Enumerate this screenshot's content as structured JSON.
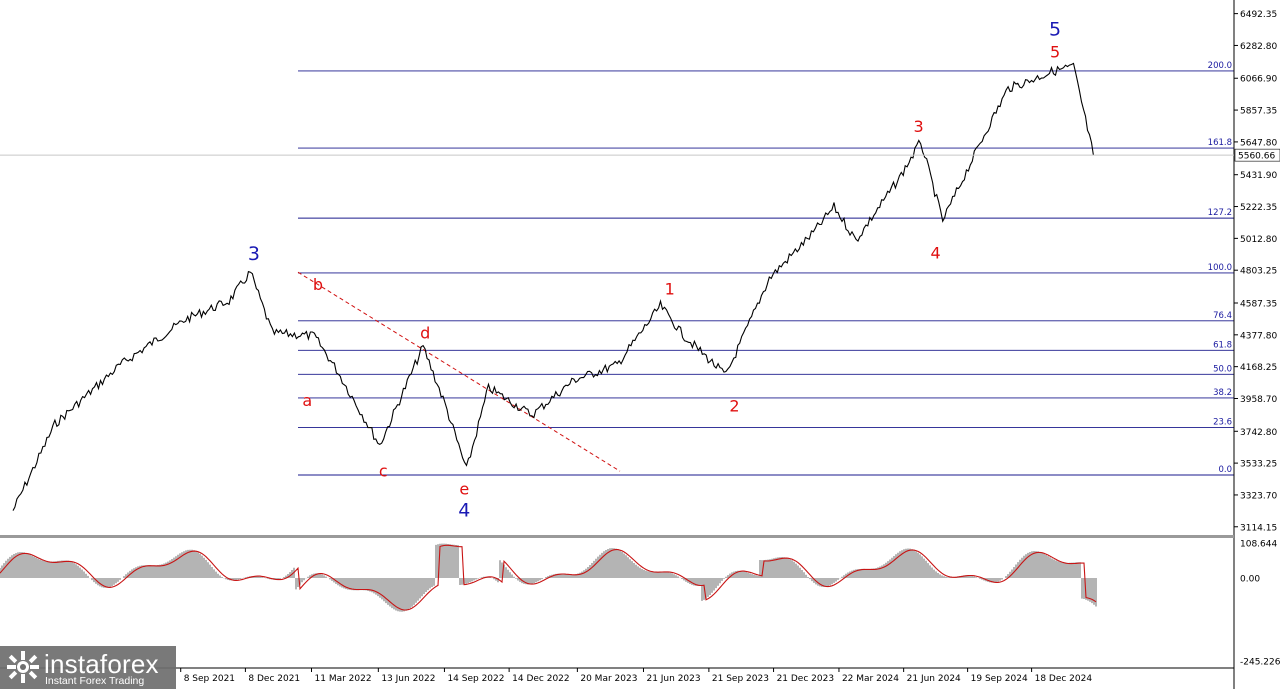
{
  "chart_data": [
    {
      "type": "line",
      "series": [
        {
          "x": [
            "2021-01",
            "2021-03",
            "2021-06",
            "2021-09",
            "2021-11",
            "2021-12",
            "2022-01",
            "2022-03",
            "2022-04",
            "2022-06",
            "2022-08",
            "2022-09",
            "2022-10",
            "2022-11",
            "2023-01",
            "2023-03",
            "2023-05",
            "2023-07",
            "2023-08",
            "2023-10",
            "2023-12",
            "2024-02",
            "2024-03",
            "2024-04",
            "2024-06",
            "2024-07",
            "2024-08",
            "2024-10",
            "2024-11",
            "2024-12",
            "2025-01",
            "2025-02",
            "2025-03"
          ],
          "values": [
            3220,
            3790,
            4180,
            4480,
            4600,
            4790,
            4390,
            4370,
            4150,
            3650,
            4300,
            3920,
            3490,
            4030,
            3850,
            4080,
            4180,
            4570,
            4380,
            4110,
            4750,
            5050,
            5220,
            5000,
            5410,
            5650,
            5130,
            5720,
            6000,
            6050,
            6110,
            6145,
            5560
          ]
        }
      ],
      "price_axis_ticks": [
        "6492.35",
        "6282.80",
        "6066.90",
        "5857.35",
        "5647.80",
        "5431.90",
        "5222.35",
        "5012.80",
        "4803.25",
        "4587.35",
        "4377.80",
        "4168.25",
        "3958.70",
        "3742.80",
        "3533.25",
        "3323.70",
        "3114.15"
      ],
      "current_price": "5560.66",
      "x_tick_labels": [
        "8 Sep 2021",
        "8 Dec 2021",
        "11 Mar 2022",
        "13 Jun 2022",
        "14 Sep 2022",
        "14 Dec 2022",
        "20 Mar 2023",
        "21 Jun 2023",
        "21 Sep 2023",
        "21 Dec 2023",
        "22 Mar 2024",
        "21 Jun 2024",
        "19 Sep 2024",
        "18 Dec 2024"
      ],
      "fibonacci_levels": [
        {
          "label": "200.0",
          "price": 6115
        },
        {
          "label": "161.8",
          "price": 5607
        },
        {
          "label": "127.2",
          "price": 5146
        },
        {
          "label": "100.0",
          "price": 4785
        },
        {
          "label": "76.4",
          "price": 4470
        },
        {
          "label": "61.8",
          "price": 4276
        },
        {
          "label": "50.0",
          "price": 4118
        },
        {
          "label": "38.2",
          "price": 3962
        },
        {
          "label": "23.6",
          "price": 3767
        },
        {
          "label": "0.0",
          "price": 3455
        }
      ],
      "wave_labels": [
        {
          "text": "3",
          "color": "blue"
        },
        {
          "text": "b",
          "color": "red"
        },
        {
          "text": "a",
          "color": "red"
        },
        {
          "text": "d",
          "color": "red"
        },
        {
          "text": "c",
          "color": "red"
        },
        {
          "text": "e",
          "color": "red"
        },
        {
          "text": "4",
          "color": "blue"
        },
        {
          "text": "1",
          "color": "red"
        },
        {
          "text": "2",
          "color": "red"
        },
        {
          "text": "3",
          "color": "red"
        },
        {
          "text": "4",
          "color": "red"
        },
        {
          "text": "5",
          "color": "red"
        },
        {
          "text": "5",
          "color": "blue"
        }
      ],
      "colors": {
        "price": "#000000",
        "fib": "#1a1a8c",
        "trend": "#d01010",
        "wave_red": "#e01010",
        "wave_blue": "#1a1ab4"
      }
    },
    {
      "type": "area",
      "oscillator_axis_ticks": [
        "108.644",
        "0.00",
        "-245.226"
      ],
      "colors": {
        "histogram": "#b4b4b4",
        "signal": "#c81414"
      }
    }
  ],
  "branding": {
    "name": "instaforex",
    "tagline": "Instant Forex Trading"
  }
}
